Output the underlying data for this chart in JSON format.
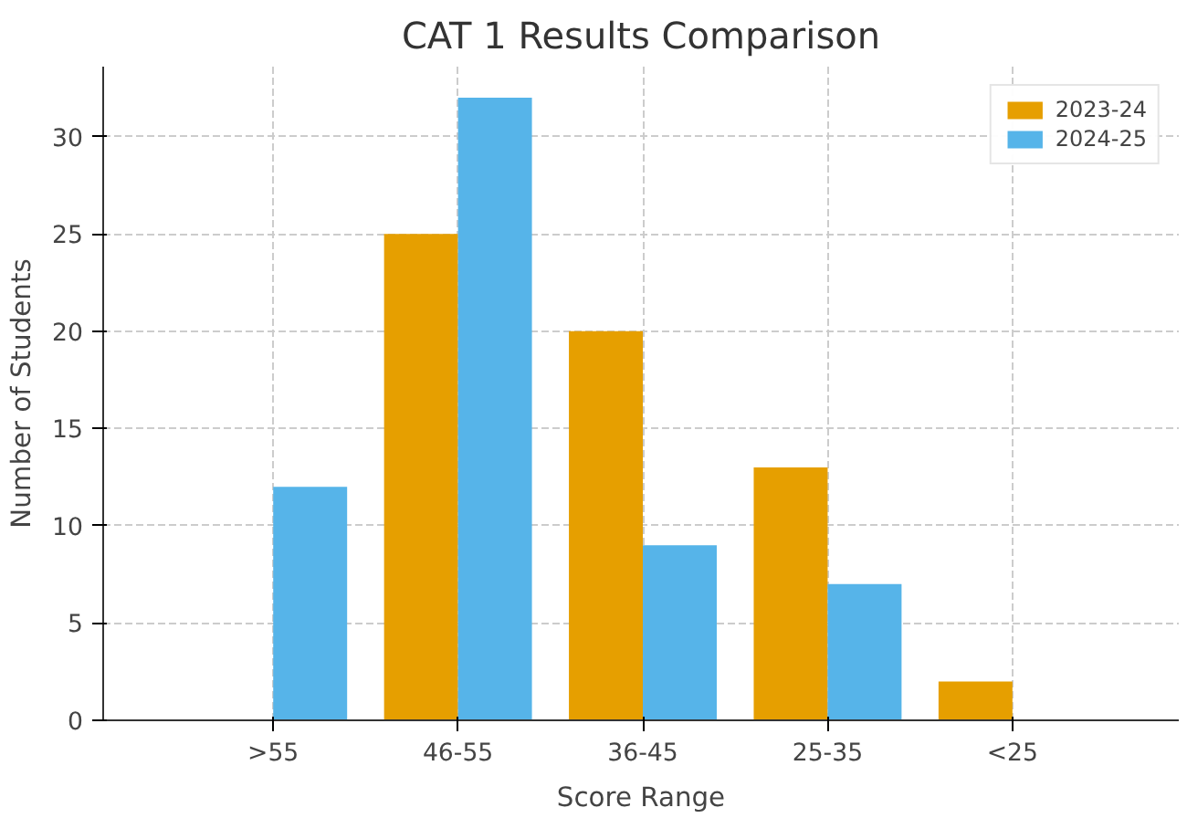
{
  "chart_data": {
    "type": "bar",
    "title": "CAT 1 Results Comparison",
    "xlabel": "Score Range",
    "ylabel": "Number of Students",
    "categories": [
      ">55",
      "46-55",
      "36-45",
      "25-35",
      "<25"
    ],
    "series": [
      {
        "name": "2023-24",
        "color": "#e69f00",
        "values": [
          0,
          25,
          20,
          13,
          2
        ]
      },
      {
        "name": "2024-25",
        "color": "#56b4e9",
        "values": [
          12,
          32,
          9,
          7,
          0
        ]
      }
    ],
    "ylim": [
      0,
      33.6
    ],
    "yticks": [
      0,
      5,
      10,
      15,
      20,
      25,
      30
    ],
    "grid": true,
    "legend": "top right"
  }
}
